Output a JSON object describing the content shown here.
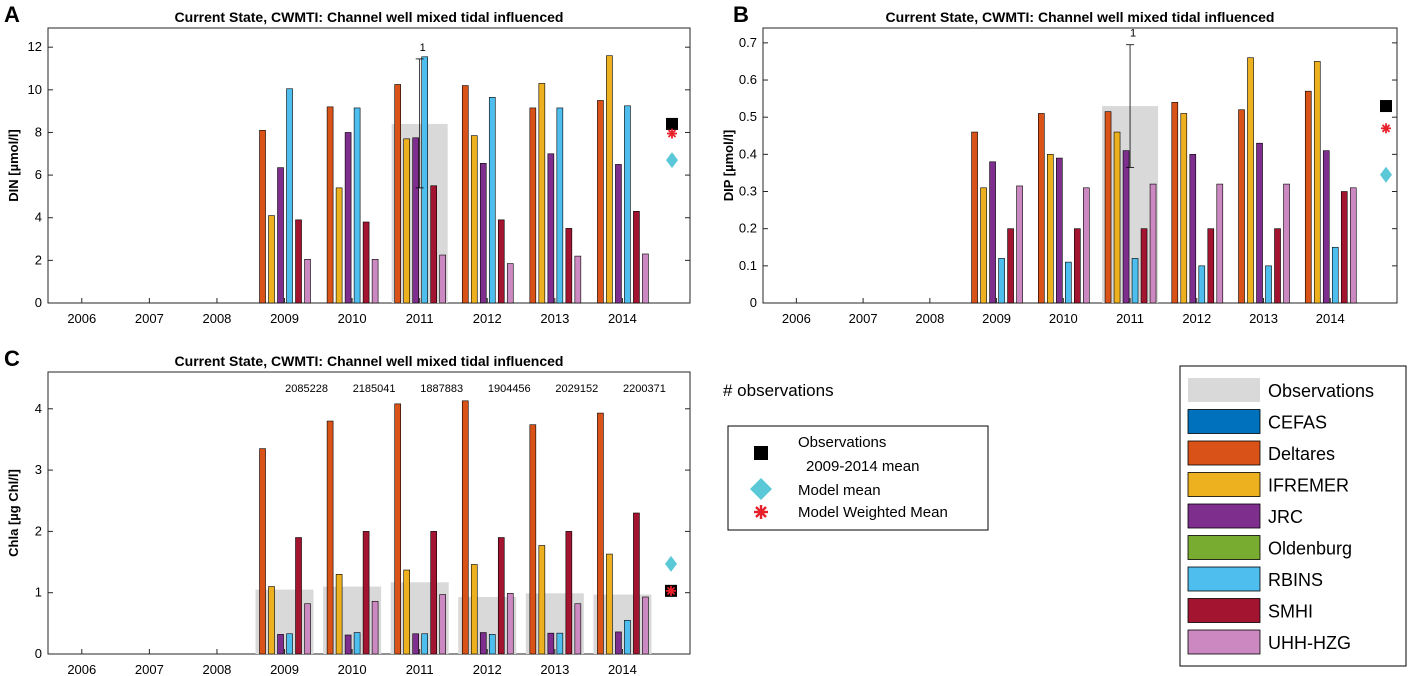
{
  "colors": {
    "CEFAS": "#0072BD",
    "Deltares": "#D95319",
    "IFREMER": "#EDB120",
    "JRC": "#7E2F8E",
    "Oldenburg": "#77AC30",
    "RBINS": "#4DBEEE",
    "SMHI": "#A2142F",
    "UHH-HZG": "#CC88C0",
    "Observations": "#d9d9d9",
    "obs_mean": "#000000",
    "model_mean": "#5BC8D8",
    "weighted_mean": "#E8202A"
  },
  "panel_c_obs_counts": [
    "2085228",
    "2185041",
    "1887883",
    "1904456",
    "2029152",
    "2200371"
  ],
  "obs_count_label": "# observations",
  "markers_legend": {
    "obs_label_line1": "Observations",
    "obs_label_line2": "2009-2014 mean",
    "model_mean_label": "Model mean",
    "weighted_label": "Model Weighted Mean"
  },
  "bar_legend": [
    "Observations",
    "CEFAS",
    "Deltares",
    "IFREMER",
    "JRC",
    "Oldenburg",
    "RBINS",
    "SMHI",
    "UHH-HZG"
  ],
  "chart_data": [
    {
      "panel": "A",
      "type": "bar",
      "title": "Current State, CWMTI: Channel well mixed tidal influenced",
      "ylabel": "DIN [µmol/l]",
      "xlabel": "",
      "ylim": [
        0,
        12.9
      ],
      "yticks": [
        0,
        2,
        4,
        6,
        8,
        10,
        12
      ],
      "categories": [
        "2006",
        "2007",
        "2008",
        "2009",
        "2010",
        "2011",
        "2012",
        "2013",
        "2014"
      ],
      "observations": {
        "2011": 8.4
      },
      "obs_error": {
        "year": "2011",
        "low": 5.4,
        "high": 11.45,
        "label": "1"
      },
      "series": [
        {
          "name": "Deltares",
          "values": [
            null,
            null,
            null,
            8.1,
            9.2,
            10.25,
            10.2,
            9.15,
            9.5
          ]
        },
        {
          "name": "IFREMER",
          "values": [
            null,
            null,
            null,
            4.1,
            5.4,
            7.7,
            7.85,
            10.3,
            11.6
          ]
        },
        {
          "name": "JRC",
          "values": [
            null,
            null,
            null,
            6.35,
            8.0,
            7.75,
            6.55,
            7.0,
            6.5
          ]
        },
        {
          "name": "RBINS",
          "values": [
            null,
            null,
            null,
            10.05,
            9.15,
            11.55,
            9.65,
            9.15,
            9.25
          ]
        },
        {
          "name": "SMHI",
          "values": [
            null,
            null,
            null,
            3.9,
            3.8,
            5.5,
            3.9,
            3.5,
            4.3
          ]
        },
        {
          "name": "UHH-HZG",
          "values": [
            null,
            null,
            null,
            2.05,
            2.05,
            2.25,
            1.85,
            2.2,
            2.3
          ]
        }
      ],
      "markers": {
        "obs_mean": 8.4,
        "weighted_mean": 7.95,
        "model_mean": 6.7
      }
    },
    {
      "panel": "B",
      "type": "bar",
      "title": "Current State, CWMTI: Channel well mixed tidal influenced",
      "ylabel": "DIP [µmol/l]",
      "xlabel": "",
      "ylim": [
        0,
        0.74
      ],
      "yticks": [
        0,
        0.1,
        0.2,
        0.3,
        0.4,
        0.5,
        0.6,
        0.7
      ],
      "categories": [
        "2006",
        "2007",
        "2008",
        "2009",
        "2010",
        "2011",
        "2012",
        "2013",
        "2014"
      ],
      "observations": {
        "2011": 0.53
      },
      "obs_error": {
        "year": "2011",
        "low": 0.365,
        "high": 0.695,
        "label": "1"
      },
      "series": [
        {
          "name": "Deltares",
          "values": [
            null,
            null,
            null,
            0.46,
            0.51,
            0.515,
            0.54,
            0.52,
            0.57
          ]
        },
        {
          "name": "IFREMER",
          "values": [
            null,
            null,
            null,
            0.31,
            0.4,
            0.46,
            0.51,
            0.66,
            0.65
          ]
        },
        {
          "name": "JRC",
          "values": [
            null,
            null,
            null,
            0.38,
            0.39,
            0.41,
            0.4,
            0.43,
            0.41
          ]
        },
        {
          "name": "RBINS",
          "values": [
            null,
            null,
            null,
            0.12,
            0.11,
            0.12,
            0.1,
            0.1,
            0.15
          ]
        },
        {
          "name": "SMHI",
          "values": [
            null,
            null,
            null,
            0.2,
            0.2,
            0.2,
            0.2,
            0.2,
            0.3
          ]
        },
        {
          "name": "UHH-HZG",
          "values": [
            null,
            null,
            null,
            0.315,
            0.31,
            0.32,
            0.32,
            0.32,
            0.31
          ]
        }
      ],
      "markers": {
        "obs_mean": 0.53,
        "weighted_mean": 0.47,
        "model_mean": 0.345
      }
    },
    {
      "panel": "C",
      "type": "bar",
      "title": "Current State, CWMTI: Channel well mixed tidal influenced",
      "ylabel": "Chla [µg Chl/l]",
      "xlabel": "",
      "ylim": [
        0,
        4.6
      ],
      "yticks": [
        0,
        1,
        2,
        3,
        4
      ],
      "categories": [
        "2006",
        "2007",
        "2008",
        "2009",
        "2010",
        "2011",
        "2012",
        "2013",
        "2014"
      ],
      "observations": {
        "2009": 1.05,
        "2010": 1.1,
        "2011": 1.17,
        "2012": 0.93,
        "2013": 0.99,
        "2014": 0.97
      },
      "series": [
        {
          "name": "Deltares",
          "values": [
            null,
            null,
            null,
            3.35,
            3.8,
            4.08,
            4.13,
            3.74,
            3.93
          ]
        },
        {
          "name": "IFREMER",
          "values": [
            null,
            null,
            null,
            1.1,
            1.3,
            1.37,
            1.46,
            1.77,
            1.63
          ]
        },
        {
          "name": "JRC",
          "values": [
            null,
            null,
            null,
            0.32,
            0.31,
            0.33,
            0.35,
            0.34,
            0.36
          ]
        },
        {
          "name": "RBINS",
          "values": [
            null,
            null,
            null,
            0.33,
            0.35,
            0.33,
            0.32,
            0.34,
            0.55
          ]
        },
        {
          "name": "SMHI",
          "values": [
            null,
            null,
            null,
            1.9,
            2.0,
            2.0,
            1.9,
            2.0,
            2.3
          ]
        },
        {
          "name": "UHH-HZG",
          "values": [
            null,
            null,
            null,
            0.82,
            0.86,
            0.97,
            0.99,
            0.82,
            0.93
          ]
        }
      ],
      "markers": {
        "obs_mean": 1.03,
        "weighted_mean": 1.03,
        "model_mean": 1.47
      }
    }
  ]
}
